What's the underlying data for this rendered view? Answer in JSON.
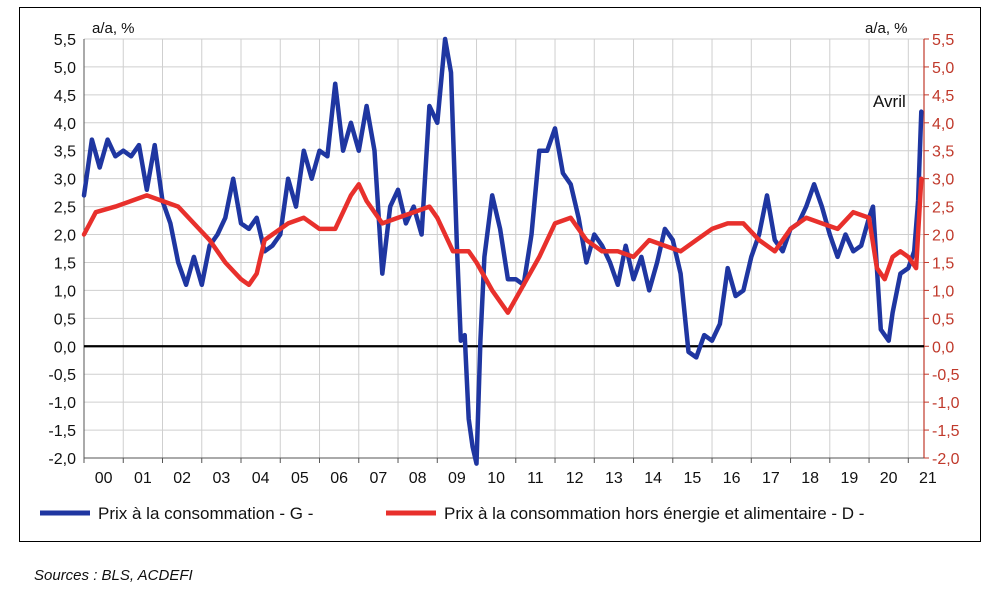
{
  "source_note": "Sources : BLS, ACDEFI",
  "chart_data": {
    "type": "line",
    "left_axis_unit": "a/a, %",
    "right_axis_unit": "a/a, %",
    "ylim": [
      -2.0,
      5.5
    ],
    "yticks": [
      "5,5",
      "5,0",
      "4,5",
      "4,0",
      "3,5",
      "3,0",
      "2,5",
      "2,0",
      "1,5",
      "1,0",
      "0,5",
      "0,0",
      "-0,5",
      "-1,0",
      "-1,5",
      "-2,0"
    ],
    "x_ticklabels": [
      "00",
      "01",
      "02",
      "03",
      "04",
      "05",
      "06",
      "07",
      "08",
      "09",
      "10",
      "11",
      "12",
      "13",
      "14",
      "15",
      "16",
      "17",
      "18",
      "19",
      "20",
      "21"
    ],
    "xlim": [
      2000.0,
      2021.4
    ],
    "grid": true,
    "annotation": "Avril",
    "colors": {
      "series_g": "#1f36a1",
      "series_d": "#e8302c",
      "right_axis": "#c0392b",
      "grid": "#cfcfcf"
    },
    "series": [
      {
        "name": "Prix à la consommation - G -",
        "axis": "left",
        "points": [
          [
            2000.0,
            2.7
          ],
          [
            2000.2,
            3.7
          ],
          [
            2000.4,
            3.2
          ],
          [
            2000.6,
            3.7
          ],
          [
            2000.8,
            3.4
          ],
          [
            2001.0,
            3.5
          ],
          [
            2001.2,
            3.4
          ],
          [
            2001.4,
            3.6
          ],
          [
            2001.6,
            2.8
          ],
          [
            2001.8,
            3.6
          ],
          [
            2002.0,
            2.6
          ],
          [
            2002.2,
            2.2
          ],
          [
            2002.4,
            1.5
          ],
          [
            2002.6,
            1.1
          ],
          [
            2002.8,
            1.6
          ],
          [
            2003.0,
            1.1
          ],
          [
            2003.2,
            1.8
          ],
          [
            2003.4,
            2.0
          ],
          [
            2003.6,
            2.3
          ],
          [
            2003.8,
            3.0
          ],
          [
            2004.0,
            2.2
          ],
          [
            2004.2,
            2.1
          ],
          [
            2004.4,
            2.3
          ],
          [
            2004.6,
            1.7
          ],
          [
            2004.8,
            1.8
          ],
          [
            2005.0,
            2.0
          ],
          [
            2005.2,
            3.0
          ],
          [
            2005.4,
            2.5
          ],
          [
            2005.6,
            3.5
          ],
          [
            2005.8,
            3.0
          ],
          [
            2006.0,
            3.5
          ],
          [
            2006.2,
            3.4
          ],
          [
            2006.4,
            4.7
          ],
          [
            2006.6,
            3.5
          ],
          [
            2006.8,
            4.0
          ],
          [
            2007.0,
            3.5
          ],
          [
            2007.2,
            4.3
          ],
          [
            2007.4,
            3.5
          ],
          [
            2007.6,
            1.3
          ],
          [
            2007.8,
            2.5
          ],
          [
            2008.0,
            2.8
          ],
          [
            2008.2,
            2.2
          ],
          [
            2008.4,
            2.5
          ],
          [
            2008.6,
            2.0
          ],
          [
            2008.8,
            4.3
          ],
          [
            2009.0,
            4.0
          ],
          [
            2009.2,
            5.5
          ],
          [
            2009.35,
            4.9
          ],
          [
            2009.5,
            1.8
          ],
          [
            2009.6,
            0.1
          ],
          [
            2009.7,
            0.2
          ],
          [
            2009.8,
            -1.3
          ],
          [
            2009.9,
            -1.8
          ],
          [
            2010.0,
            -2.1
          ],
          [
            2010.1,
            0.1
          ],
          [
            2010.2,
            1.6
          ],
          [
            2010.4,
            2.7
          ],
          [
            2010.6,
            2.1
          ],
          [
            2010.8,
            1.2
          ],
          [
            2011.0,
            1.2
          ],
          [
            2011.2,
            1.1
          ],
          [
            2011.4,
            2.0
          ],
          [
            2011.6,
            3.5
          ],
          [
            2011.8,
            3.5
          ],
          [
            2012.0,
            3.9
          ],
          [
            2012.2,
            3.1
          ],
          [
            2012.4,
            2.9
          ],
          [
            2012.6,
            2.3
          ],
          [
            2012.8,
            1.5
          ],
          [
            2013.0,
            2.0
          ],
          [
            2013.2,
            1.8
          ],
          [
            2013.4,
            1.5
          ],
          [
            2013.6,
            1.1
          ],
          [
            2013.8,
            1.8
          ],
          [
            2014.0,
            1.2
          ],
          [
            2014.2,
            1.6
          ],
          [
            2014.4,
            1.0
          ],
          [
            2014.6,
            1.5
          ],
          [
            2014.8,
            2.1
          ],
          [
            2015.0,
            1.9
          ],
          [
            2015.2,
            1.3
          ],
          [
            2015.4,
            -0.1
          ],
          [
            2015.6,
            -0.2
          ],
          [
            2015.8,
            0.2
          ],
          [
            2016.0,
            0.1
          ],
          [
            2016.2,
            0.4
          ],
          [
            2016.4,
            1.4
          ],
          [
            2016.6,
            0.9
          ],
          [
            2016.8,
            1.0
          ],
          [
            2017.0,
            1.6
          ],
          [
            2017.2,
            2.0
          ],
          [
            2017.4,
            2.7
          ],
          [
            2017.6,
            1.9
          ],
          [
            2017.8,
            1.7
          ],
          [
            2018.0,
            2.1
          ],
          [
            2018.2,
            2.2
          ],
          [
            2018.4,
            2.5
          ],
          [
            2018.6,
            2.9
          ],
          [
            2018.8,
            2.5
          ],
          [
            2019.0,
            2.0
          ],
          [
            2019.2,
            1.6
          ],
          [
            2019.4,
            2.0
          ],
          [
            2019.6,
            1.7
          ],
          [
            2019.8,
            1.8
          ],
          [
            2020.0,
            2.3
          ],
          [
            2020.1,
            2.5
          ],
          [
            2020.3,
            0.3
          ],
          [
            2020.5,
            0.1
          ],
          [
            2020.6,
            0.6
          ],
          [
            2020.8,
            1.3
          ],
          [
            2021.0,
            1.4
          ],
          [
            2021.15,
            1.7
          ],
          [
            2021.25,
            2.6
          ],
          [
            2021.33,
            4.2
          ]
        ]
      },
      {
        "name": "Prix à la consommation hors énergie et alimentaire - D -",
        "axis": "right",
        "points": [
          [
            2000.0,
            2.0
          ],
          [
            2000.3,
            2.4
          ],
          [
            2000.8,
            2.5
          ],
          [
            2001.2,
            2.6
          ],
          [
            2001.6,
            2.7
          ],
          [
            2002.0,
            2.6
          ],
          [
            2002.4,
            2.5
          ],
          [
            2002.8,
            2.2
          ],
          [
            2003.2,
            1.9
          ],
          [
            2003.6,
            1.5
          ],
          [
            2004.0,
            1.2
          ],
          [
            2004.2,
            1.1
          ],
          [
            2004.4,
            1.3
          ],
          [
            2004.6,
            1.9
          ],
          [
            2004.8,
            2.0
          ],
          [
            2005.2,
            2.2
          ],
          [
            2005.6,
            2.3
          ],
          [
            2006.0,
            2.1
          ],
          [
            2006.4,
            2.1
          ],
          [
            2006.8,
            2.7
          ],
          [
            2007.0,
            2.9
          ],
          [
            2007.2,
            2.6
          ],
          [
            2007.6,
            2.2
          ],
          [
            2008.0,
            2.3
          ],
          [
            2008.4,
            2.4
          ],
          [
            2008.8,
            2.5
          ],
          [
            2009.0,
            2.3
          ],
          [
            2009.4,
            1.7
          ],
          [
            2009.8,
            1.7
          ],
          [
            2010.0,
            1.5
          ],
          [
            2010.4,
            1.0
          ],
          [
            2010.8,
            0.6
          ],
          [
            2011.2,
            1.1
          ],
          [
            2011.6,
            1.6
          ],
          [
            2012.0,
            2.2
          ],
          [
            2012.4,
            2.3
          ],
          [
            2012.8,
            1.9
          ],
          [
            2013.2,
            1.7
          ],
          [
            2013.6,
            1.7
          ],
          [
            2014.0,
            1.6
          ],
          [
            2014.4,
            1.9
          ],
          [
            2014.8,
            1.8
          ],
          [
            2015.2,
            1.7
          ],
          [
            2015.6,
            1.9
          ],
          [
            2016.0,
            2.1
          ],
          [
            2016.4,
            2.2
          ],
          [
            2016.8,
            2.2
          ],
          [
            2017.2,
            1.9
          ],
          [
            2017.6,
            1.7
          ],
          [
            2018.0,
            2.1
          ],
          [
            2018.4,
            2.3
          ],
          [
            2018.8,
            2.2
          ],
          [
            2019.2,
            2.1
          ],
          [
            2019.6,
            2.4
          ],
          [
            2020.0,
            2.3
          ],
          [
            2020.2,
            1.4
          ],
          [
            2020.4,
            1.2
          ],
          [
            2020.6,
            1.6
          ],
          [
            2020.8,
            1.7
          ],
          [
            2021.0,
            1.6
          ],
          [
            2021.2,
            1.4
          ],
          [
            2021.33,
            3.0
          ]
        ]
      }
    ]
  }
}
